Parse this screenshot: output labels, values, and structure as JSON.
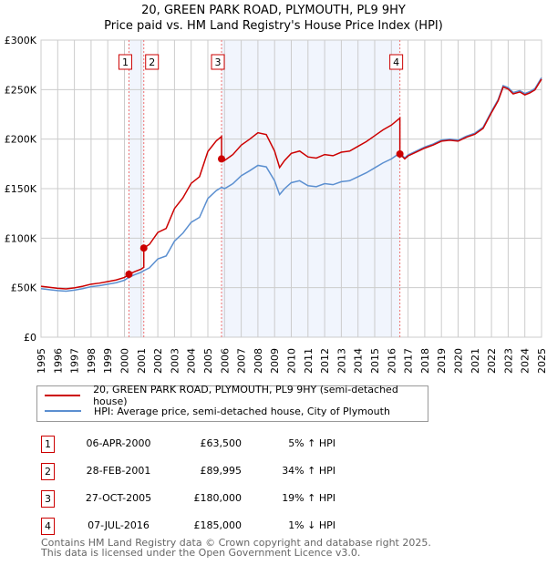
{
  "chart_data": {
    "type": "line",
    "title": "20, GREEN PARK ROAD, PLYMOUTH, PL9 9HY",
    "subtitle": "Price paid vs. HM Land Registry's House Price Index (HPI)",
    "xlim": [
      1995,
      2025
    ],
    "ylim": [
      0,
      300000
    ],
    "y_ticks": [
      {
        "v": 0,
        "label": "£0"
      },
      {
        "v": 50000,
        "label": "£50K"
      },
      {
        "v": 100000,
        "label": "£100K"
      },
      {
        "v": 150000,
        "label": "£150K"
      },
      {
        "v": 200000,
        "label": "£200K"
      },
      {
        "v": 250000,
        "label": "£250K"
      },
      {
        "v": 300000,
        "label": "£300K"
      }
    ],
    "x_ticks": [
      "1995",
      "1996",
      "1997",
      "1998",
      "1999",
      "2000",
      "2001",
      "2002",
      "2003",
      "2004",
      "2005",
      "2006",
      "2007",
      "2008",
      "2009",
      "2010",
      "2011",
      "2012",
      "2013",
      "2014",
      "2015",
      "2016",
      "2017",
      "2018",
      "2019",
      "2020",
      "2021",
      "2022",
      "2023",
      "2024",
      "2025"
    ],
    "grid": true,
    "series": [
      {
        "name": "20, GREEN PARK ROAD, PLYMOUTH, PL9 9HY (semi-detached house)",
        "color": "#cc0000",
        "derived_from": "hpi scaled at each sale"
      },
      {
        "name": "HPI: Average price, semi-detached house, City of Plymouth",
        "color": "#5b8fd0",
        "x": [
          1995,
          1995.5,
          1996,
          1996.5,
          1997,
          1997.5,
          1998,
          1998.5,
          1999,
          1999.5,
          2000,
          2000.27,
          2000.6,
          2001,
          2001.16,
          2001.5,
          2002,
          2002.5,
          2003,
          2003.5,
          2004,
          2004.5,
          2005,
          2005.5,
          2005.82,
          2006,
          2006.5,
          2007,
          2007.5,
          2008,
          2008.5,
          2009,
          2009.3,
          2009.6,
          2010,
          2010.5,
          2011,
          2011.5,
          2012,
          2012.5,
          2013,
          2013.5,
          2014,
          2014.5,
          2015,
          2015.5,
          2016,
          2016.51,
          2016.8,
          2017,
          2017.5,
          2018,
          2018.5,
          2019,
          2019.5,
          2020,
          2020.5,
          2021,
          2021.5,
          2022,
          2022.4,
          2022.7,
          2023,
          2023.3,
          2023.7,
          2024,
          2024.3,
          2024.6,
          2025
        ],
        "y": [
          49000,
          48000,
          47000,
          46500,
          47500,
          49000,
          51000,
          52000,
          53500,
          55000,
          57500,
          60500,
          63000,
          65500,
          67200,
          70000,
          79000,
          82000,
          97000,
          105000,
          116000,
          121000,
          140000,
          148000,
          151300,
          150000,
          155000,
          163000,
          168000,
          173500,
          172000,
          158000,
          144000,
          150000,
          156000,
          158000,
          153000,
          152000,
          155000,
          154000,
          157000,
          158000,
          162000,
          166000,
          171000,
          176000,
          180000,
          186000,
          181000,
          184000,
          188000,
          192000,
          195000,
          199000,
          200000,
          199000,
          203000,
          206000,
          212000,
          228000,
          240000,
          254000,
          252000,
          247000,
          249000,
          246000,
          248000,
          251000,
          262000
        ]
      }
    ],
    "sales": [
      {
        "n": "1",
        "date": "06-APR-2000",
        "x": 2000.27,
        "price": "£63,500",
        "value": 63500,
        "hpi": "5% ↑ HPI"
      },
      {
        "n": "2",
        "date": "28-FEB-2001",
        "x": 2001.16,
        "price": "£89,995",
        "value": 89995,
        "hpi": "34% ↑ HPI"
      },
      {
        "n": "3",
        "date": "27-OCT-2005",
        "x": 2005.82,
        "price": "£180,000",
        "value": 180000,
        "hpi": "19% ↑ HPI"
      },
      {
        "n": "4",
        "date": "07-JUL-2016",
        "x": 2016.51,
        "price": "£185,000",
        "value": 185000,
        "hpi": "1% ↓ HPI"
      }
    ],
    "shaded_ranges": [
      [
        2000.27,
        2001.16
      ],
      [
        2005.82,
        2016.51
      ]
    ]
  },
  "legend": {
    "red": "20, GREEN PARK ROAD, PLYMOUTH, PL9 9HY (semi-detached house)",
    "blue": "HPI: Average price, semi-detached house, City of Plymouth"
  },
  "footer": {
    "line1": "Contains HM Land Registry data © Crown copyright and database right 2025.",
    "line2": "This data is licensed under the Open Government Licence v3.0."
  }
}
